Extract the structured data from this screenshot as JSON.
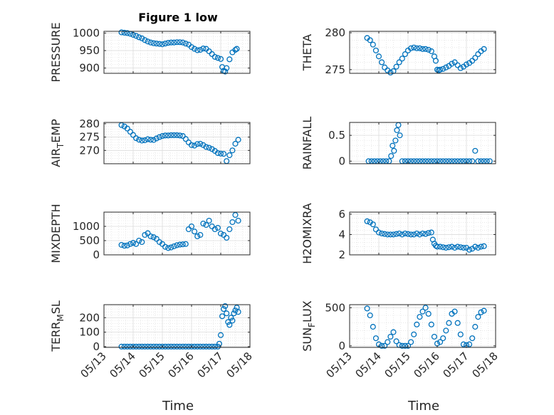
{
  "figure_title": "Figure 1 low",
  "xlabel": "Time",
  "date_ticks": [
    "05/13",
    "05/14",
    "05/15",
    "05/16",
    "05/17",
    "05/18"
  ],
  "marker_color": "#0072BD",
  "chart_data": [
    {
      "type": "scatter",
      "panel": "pressure",
      "title": "Figure 1 low",
      "ylabel": "PRESSURE",
      "ylabel_base": "PRESSURE",
      "ylabel_sub": "",
      "ylabel_tail": "",
      "ylim": [
        885,
        1005
      ],
      "yticks": [
        900,
        950,
        1000
      ],
      "xlim": [
        0,
        5
      ],
      "grid": true,
      "x": [
        0.6,
        0.7,
        0.8,
        0.9,
        1.0,
        1.1,
        1.2,
        1.3,
        1.4,
        1.5,
        1.6,
        1.7,
        1.8,
        1.9,
        2.0,
        2.1,
        2.2,
        2.3,
        2.4,
        2.5,
        2.6,
        2.7,
        2.8,
        2.9,
        3.0,
        3.1,
        3.2,
        3.3,
        3.4,
        3.5,
        3.6,
        3.7,
        3.8,
        3.9,
        4.0,
        4.05,
        4.1,
        4.15,
        4.2,
        4.3,
        4.4,
        4.5,
        4.55
      ],
      "y": [
        1002,
        1001,
        1000,
        998,
        995,
        992,
        988,
        985,
        980,
        976,
        973,
        971,
        970,
        969,
        968,
        970,
        972,
        973,
        973,
        974,
        974,
        973,
        970,
        967,
        960,
        955,
        951,
        952,
        956,
        955,
        948,
        940,
        932,
        929,
        926,
        903,
        892,
        890,
        900,
        925,
        945,
        952,
        955
      ]
    },
    {
      "type": "scatter",
      "panel": "theta",
      "ylabel": "THETA",
      "ylabel_base": "THETA",
      "ylabel_sub": "",
      "ylabel_tail": "",
      "ylim": [
        274.5,
        280.2
      ],
      "yticks": [
        275,
        280
      ],
      "xlim": [
        0,
        5
      ],
      "grid": true,
      "x": [
        0.6,
        0.7,
        0.8,
        0.9,
        1.0,
        1.1,
        1.2,
        1.3,
        1.4,
        1.5,
        1.6,
        1.7,
        1.8,
        1.9,
        2.0,
        2.1,
        2.2,
        2.3,
        2.4,
        2.5,
        2.6,
        2.7,
        2.8,
        2.9,
        2.95,
        3.0,
        3.05,
        3.1,
        3.2,
        3.3,
        3.4,
        3.5,
        3.6,
        3.7,
        3.8,
        3.9,
        4.0,
        4.1,
        4.2,
        4.3,
        4.4,
        4.5,
        4.6
      ],
      "y": [
        279.3,
        279.0,
        278.4,
        277.6,
        276.8,
        276.0,
        275.3,
        274.9,
        274.6,
        274.8,
        275.4,
        276.0,
        276.5,
        277.1,
        277.6,
        277.9,
        278.0,
        277.9,
        277.9,
        277.8,
        277.8,
        277.7,
        277.5,
        276.8,
        276.2,
        275.0,
        274.9,
        275.0,
        275.1,
        275.3,
        275.5,
        275.8,
        276.0,
        275.6,
        275.2,
        275.4,
        275.7,
        275.9,
        276.2,
        276.6,
        277.1,
        277.5,
        277.8
      ]
    },
    {
      "type": "scatter",
      "panel": "air_temp",
      "ylabel": "AIR_TEMP",
      "ylabel_base": "AIR",
      "ylabel_sub": "T",
      "ylabel_tail": "EMP",
      "ylim": [
        265,
        280.5
      ],
      "yticks": [
        270,
        275,
        280
      ],
      "xlim": [
        0,
        5
      ],
      "grid": true,
      "x": [
        0.6,
        0.7,
        0.8,
        0.9,
        1.0,
        1.1,
        1.2,
        1.3,
        1.4,
        1.5,
        1.6,
        1.7,
        1.8,
        1.9,
        2.0,
        2.1,
        2.2,
        2.3,
        2.4,
        2.5,
        2.6,
        2.7,
        2.8,
        2.9,
        3.0,
        3.1,
        3.2,
        3.3,
        3.4,
        3.5,
        3.6,
        3.7,
        3.8,
        3.9,
        4.0,
        4.1,
        4.2,
        4.3,
        4.4,
        4.5,
        4.6
      ],
      "y": [
        279.5,
        279.0,
        278.2,
        277.0,
        275.8,
        274.6,
        274.0,
        273.7,
        273.8,
        274.2,
        274.0,
        273.9,
        274.5,
        275.0,
        275.4,
        275.6,
        275.6,
        275.7,
        275.7,
        275.7,
        275.6,
        275.4,
        274.3,
        273.0,
        272.0,
        271.8,
        272.4,
        272.5,
        272.0,
        271.3,
        271.0,
        270.5,
        269.8,
        269.0,
        268.8,
        268.7,
        266.0,
        268.2,
        270.0,
        272.5,
        274.0
      ]
    },
    {
      "type": "scatter",
      "panel": "rainfall",
      "ylabel": "RAINFALL",
      "ylabel_base": "RAINFALL",
      "ylabel_sub": "",
      "ylabel_tail": "",
      "ylim": [
        -0.05,
        0.75
      ],
      "yticks": [
        0,
        0.5
      ],
      "xlim": [
        0,
        5
      ],
      "grid": true,
      "x": [
        0.65,
        0.75,
        0.85,
        0.95,
        1.05,
        1.15,
        1.25,
        1.35,
        1.42,
        1.47,
        1.52,
        1.57,
        1.62,
        1.67,
        1.72,
        1.8,
        1.9,
        2.0,
        2.1,
        2.2,
        2.3,
        2.4,
        2.5,
        2.6,
        2.7,
        2.8,
        2.9,
        3.0,
        3.1,
        3.2,
        3.3,
        3.4,
        3.5,
        3.6,
        3.7,
        3.8,
        3.9,
        4.0,
        4.1,
        4.2,
        4.3,
        4.4,
        4.5,
        4.6,
        4.7,
        4.8
      ],
      "y": [
        0,
        0,
        0,
        0,
        0,
        0,
        0,
        0,
        0.1,
        0.3,
        0.2,
        0.4,
        0.6,
        0.7,
        0.5,
        0,
        0,
        0,
        0,
        0,
        0,
        0,
        0,
        0,
        0,
        0,
        0,
        0,
        0,
        0,
        0,
        0,
        0,
        0,
        0,
        0,
        0,
        0,
        0,
        0,
        0.2,
        0,
        0,
        0,
        0,
        0
      ]
    },
    {
      "type": "scatter",
      "panel": "mixdepth",
      "ylabel": "MIXDEPTH",
      "ylabel_base": "MIXDEPTH",
      "ylabel_sub": "",
      "ylabel_tail": "",
      "ylim": [
        0,
        1500
      ],
      "yticks": [
        0,
        500,
        1000
      ],
      "xlim": [
        0,
        5
      ],
      "grid": true,
      "x": [
        0.6,
        0.7,
        0.8,
        0.9,
        1.0,
        1.1,
        1.2,
        1.3,
        1.4,
        1.5,
        1.6,
        1.7,
        1.8,
        1.9,
        2.0,
        2.1,
        2.2,
        2.3,
        2.4,
        2.5,
        2.6,
        2.7,
        2.8,
        2.9,
        3.0,
        3.1,
        3.2,
        3.3,
        3.4,
        3.5,
        3.6,
        3.7,
        3.8,
        3.9,
        4.0,
        4.1,
        4.2,
        4.3,
        4.4,
        4.5,
        4.6
      ],
      "y": [
        350,
        320,
        330,
        380,
        420,
        380,
        500,
        450,
        700,
        760,
        650,
        620,
        560,
        450,
        380,
        280,
        240,
        260,
        300,
        340,
        360,
        370,
        380,
        900,
        1000,
        820,
        650,
        700,
        1100,
        1050,
        1200,
        1000,
        900,
        950,
        750,
        700,
        600,
        900,
        1150,
        1400,
        1200
      ]
    },
    {
      "type": "scatter",
      "panel": "h2omixra",
      "ylabel": "H2OMIXRA",
      "ylabel_base": "H2OMIXRA",
      "ylabel_sub": "",
      "ylabel_tail": "",
      "ylim": [
        2,
        6.2
      ],
      "yticks": [
        2,
        4,
        6
      ],
      "xlim": [
        0,
        5
      ],
      "grid": true,
      "x": [
        0.6,
        0.7,
        0.8,
        0.9,
        1.0,
        1.1,
        1.2,
        1.3,
        1.4,
        1.5,
        1.6,
        1.7,
        1.8,
        1.9,
        2.0,
        2.1,
        2.2,
        2.3,
        2.4,
        2.5,
        2.6,
        2.7,
        2.8,
        2.85,
        2.9,
        2.95,
        3.0,
        3.1,
        3.2,
        3.3,
        3.4,
        3.5,
        3.6,
        3.7,
        3.8,
        3.9,
        4.0,
        4.1,
        4.2,
        4.3,
        4.4,
        4.5,
        4.6
      ],
      "y": [
        5.3,
        5.2,
        5.0,
        4.5,
        4.2,
        4.1,
        4.05,
        4.0,
        4.0,
        4.0,
        4.05,
        4.1,
        4.0,
        4.1,
        4.05,
        4.0,
        4.0,
        4.1,
        4.0,
        4.1,
        4.05,
        4.15,
        4.2,
        3.5,
        3.1,
        2.9,
        2.8,
        2.8,
        2.75,
        2.7,
        2.75,
        2.8,
        2.7,
        2.8,
        2.75,
        2.7,
        2.7,
        2.5,
        2.6,
        2.8,
        2.7,
        2.8,
        2.85
      ]
    },
    {
      "type": "scatter",
      "panel": "terr_msl",
      "ylabel": "TERR_MSL",
      "ylabel_base": "TERR",
      "ylabel_sub": "M",
      "ylabel_tail": "SL",
      "ylim": [
        -5,
        290
      ],
      "yticks": [
        0,
        100,
        200
      ],
      "xlim": [
        0,
        5
      ],
      "grid": true,
      "x": [
        0.6,
        0.7,
        0.8,
        0.9,
        1.0,
        1.1,
        1.2,
        1.3,
        1.4,
        1.5,
        1.6,
        1.7,
        1.8,
        1.9,
        2.0,
        2.1,
        2.2,
        2.3,
        2.4,
        2.5,
        2.6,
        2.7,
        2.8,
        2.9,
        3.0,
        3.1,
        3.2,
        3.3,
        3.4,
        3.5,
        3.6,
        3.7,
        3.8,
        3.9,
        3.95,
        4.0,
        4.05,
        4.1,
        4.15,
        4.2,
        4.25,
        4.3,
        4.35,
        4.4,
        4.45,
        4.5,
        4.55,
        4.6
      ],
      "y": [
        0,
        0,
        0,
        0,
        0,
        0,
        0,
        0,
        0,
        0,
        0,
        0,
        0,
        0,
        0,
        0,
        0,
        0,
        0,
        0,
        0,
        0,
        0,
        0,
        0,
        0,
        0,
        0,
        0,
        0,
        0,
        0,
        0,
        0,
        20,
        80,
        210,
        260,
        280,
        230,
        170,
        150,
        200,
        180,
        230,
        250,
        270,
        240
      ]
    },
    {
      "type": "scatter",
      "panel": "sun_flux",
      "ylabel": "SUN_FLUX",
      "ylabel_base": "SUN",
      "ylabel_sub": "F",
      "ylabel_tail": "LUX",
      "ylim": [
        -20,
        540
      ],
      "yticks": [
        0,
        500
      ],
      "xlim": [
        0,
        5
      ],
      "grid": true,
      "x": [
        0.6,
        0.7,
        0.8,
        0.9,
        1.0,
        1.1,
        1.2,
        1.3,
        1.4,
        1.5,
        1.6,
        1.7,
        1.8,
        1.9,
        2.0,
        2.1,
        2.2,
        2.3,
        2.4,
        2.5,
        2.6,
        2.7,
        2.8,
        2.9,
        3.0,
        3.1,
        3.2,
        3.3,
        3.4,
        3.5,
        3.6,
        3.7,
        3.8,
        3.9,
        4.0,
        4.1,
        4.2,
        4.3,
        4.4,
        4.5,
        4.6
      ],
      "y": [
        490,
        400,
        250,
        100,
        20,
        0,
        0,
        50,
        120,
        180,
        60,
        10,
        0,
        0,
        0,
        50,
        150,
        280,
        380,
        450,
        500,
        420,
        280,
        120,
        30,
        50,
        100,
        200,
        300,
        420,
        450,
        300,
        150,
        20,
        10,
        20,
        100,
        250,
        380,
        440,
        460
      ]
    }
  ]
}
